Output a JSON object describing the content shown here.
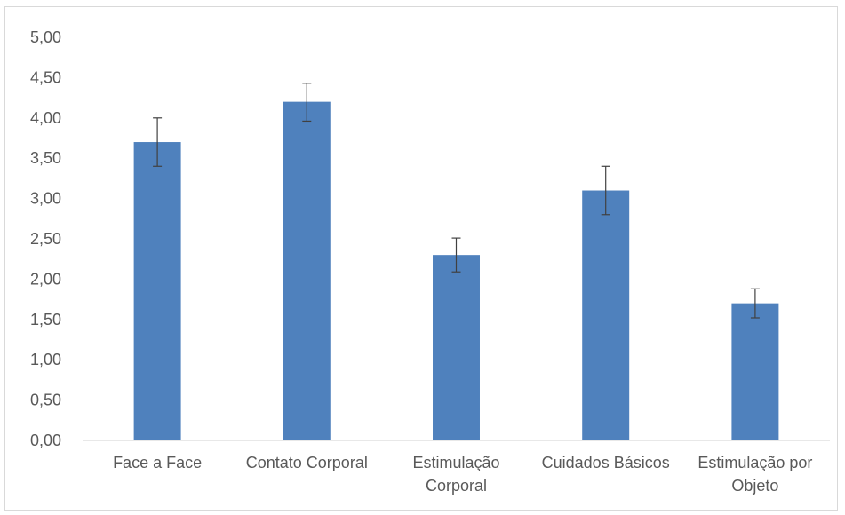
{
  "chart_data": {
    "type": "bar",
    "categories": [
      "Face a Face",
      "Contato Corporal",
      "Estimulação Corporal",
      "Cuidados Básicos",
      "Estimulação por Objeto"
    ],
    "category_label_lines": [
      [
        "Face a Face"
      ],
      [
        "Contato Corporal"
      ],
      [
        "Estimulação",
        "Corporal"
      ],
      [
        "Cuidados Básicos"
      ],
      [
        "Estimulação por",
        "Objeto"
      ]
    ],
    "series": [
      {
        "values": [
          3.7,
          4.2,
          2.3,
          3.1,
          1.7
        ],
        "error_low": [
          3.4,
          3.96,
          2.09,
          2.8,
          1.52
        ],
        "error_high": [
          4.0,
          4.43,
          2.51,
          3.4,
          1.88
        ]
      }
    ],
    "ylim": [
      0,
      5
    ],
    "y_ticks": [
      0,
      0.5,
      1,
      1.5,
      2,
      2.5,
      3,
      3.5,
      4,
      4.5,
      5
    ],
    "y_tick_labels": [
      "0,00",
      "0,50",
      "1,00",
      "1,50",
      "2,00",
      "2,50",
      "3,00",
      "3,50",
      "4,00",
      "4,50",
      "5,00"
    ],
    "grid": false,
    "legend": "none",
    "colors": {
      "bar": "#4f81bd",
      "error_bar": "#404040",
      "axis": "#d9d9d9",
      "text": "#595959"
    }
  }
}
